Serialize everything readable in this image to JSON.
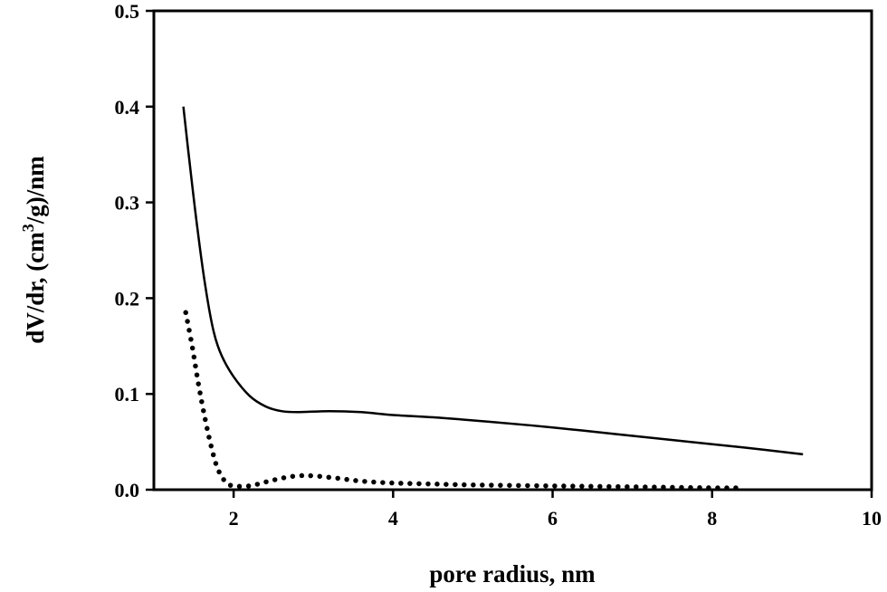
{
  "chart_data": {
    "type": "line",
    "title": "",
    "xlabel": "pore radius, nm",
    "ylabel": {
      "pre": "dV/dr, (cm",
      "sup": "3",
      "post": "/g)/nm"
    },
    "xlim": [
      1,
      10
    ],
    "ylim": [
      0,
      0.5
    ],
    "xticks": [
      2,
      4,
      6,
      8,
      10
    ],
    "xtick_labels": [
      "2",
      "4",
      "6",
      "8",
      "10"
    ],
    "yticks": [
      0,
      0.1,
      0.2,
      0.3,
      0.4,
      0.5
    ],
    "ytick_labels": [
      "0.0",
      "0.1",
      "0.2",
      "0.3",
      "0.4",
      "0.5"
    ],
    "grid": false,
    "legend": "none",
    "series": [
      {
        "style": "solid",
        "color": "#000000",
        "points": [
          [
            1.37,
            0.4
          ],
          [
            1.45,
            0.34
          ],
          [
            1.55,
            0.27
          ],
          [
            1.65,
            0.21
          ],
          [
            1.75,
            0.165
          ],
          [
            1.85,
            0.14
          ],
          [
            2.0,
            0.118
          ],
          [
            2.2,
            0.098
          ],
          [
            2.4,
            0.087
          ],
          [
            2.6,
            0.082
          ],
          [
            2.8,
            0.081
          ],
          [
            3.2,
            0.082
          ],
          [
            3.6,
            0.081
          ],
          [
            4.0,
            0.078
          ],
          [
            4.6,
            0.075
          ],
          [
            5.2,
            0.071
          ],
          [
            6.0,
            0.065
          ],
          [
            6.8,
            0.058
          ],
          [
            7.6,
            0.051
          ],
          [
            8.4,
            0.044
          ],
          [
            9.14,
            0.037
          ]
        ]
      },
      {
        "style": "dotted",
        "color": "#000000",
        "points": [
          [
            1.4,
            0.185
          ],
          [
            1.48,
            0.15
          ],
          [
            1.56,
            0.11
          ],
          [
            1.64,
            0.075
          ],
          [
            1.72,
            0.045
          ],
          [
            1.8,
            0.022
          ],
          [
            1.9,
            0.008
          ],
          [
            2.0,
            0.004
          ],
          [
            2.2,
            0.004
          ],
          [
            2.4,
            0.008
          ],
          [
            2.6,
            0.012
          ],
          [
            2.8,
            0.0145
          ],
          [
            3.0,
            0.0145
          ],
          [
            3.3,
            0.012
          ],
          [
            3.6,
            0.009
          ],
          [
            4.0,
            0.007
          ],
          [
            4.5,
            0.006
          ],
          [
            5.0,
            0.005
          ],
          [
            6.0,
            0.004
          ],
          [
            7.0,
            0.003
          ],
          [
            8.0,
            0.002
          ],
          [
            8.4,
            0.002
          ]
        ]
      }
    ]
  }
}
